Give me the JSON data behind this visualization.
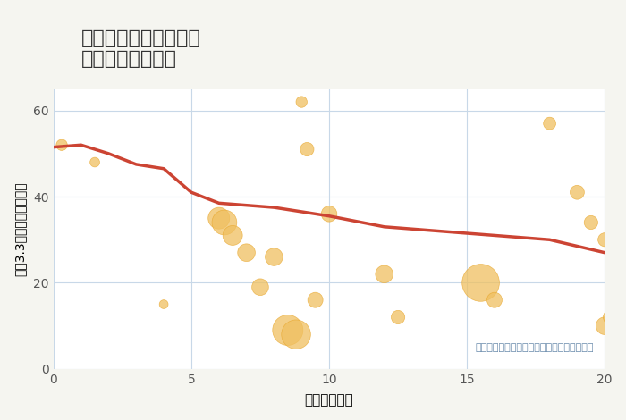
{
  "title": "奈良県奈良市水間町の\n駅距離別土地価格",
  "xlabel": "駅距離（分）",
  "ylabel": "坪（3.3㎡）単価（万円）",
  "bg_color": "#f5f5f0",
  "plot_bg_color": "#ffffff",
  "bubble_color": "#f0c060",
  "bubble_alpha": 0.75,
  "bubble_edge_color": "#e8a830",
  "line_color": "#cc4433",
  "line_width": 2.5,
  "xlim": [
    0,
    20
  ],
  "ylim": [
    0,
    65
  ],
  "xticks": [
    0,
    5,
    10,
    15,
    20
  ],
  "yticks": [
    0,
    20,
    40,
    60
  ],
  "grid_color": "#c8d8e8",
  "annotation": "円の大きさは、取引のあった物件面積を示す",
  "scatter_x": [
    0.3,
    1.5,
    4.0,
    6.0,
    6.2,
    6.5,
    7.0,
    7.5,
    8.0,
    8.5,
    8.8,
    9.0,
    9.2,
    9.5,
    10.0,
    12.0,
    12.5,
    15.5,
    16.0,
    18.0,
    19.0,
    19.5,
    20.0,
    20.0,
    20.2
  ],
  "scatter_y": [
    52,
    48,
    15,
    35,
    34,
    31,
    27,
    19,
    26,
    9,
    8,
    62,
    51,
    16,
    36,
    22,
    12,
    20,
    16,
    57,
    41,
    34,
    10,
    30,
    12
  ],
  "scatter_size": [
    80,
    60,
    50,
    300,
    400,
    250,
    200,
    180,
    200,
    600,
    550,
    80,
    120,
    150,
    160,
    200,
    120,
    900,
    150,
    100,
    130,
    120,
    200,
    120,
    130
  ],
  "trend_x": [
    0,
    1,
    2,
    3,
    4,
    5,
    6,
    7,
    8,
    9,
    10,
    12,
    14,
    16,
    18,
    20
  ],
  "trend_y": [
    51.5,
    52,
    50,
    47.5,
    46.5,
    41,
    38.5,
    38,
    37.5,
    36.5,
    35.5,
    33,
    32,
    31,
    30,
    27
  ]
}
